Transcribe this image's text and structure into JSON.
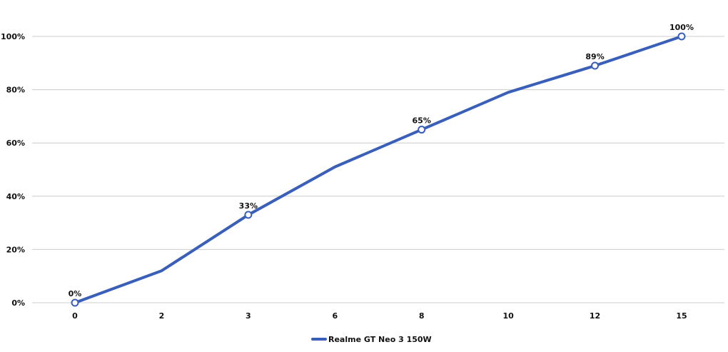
{
  "chart_data": {
    "type": "line",
    "title": "",
    "xlabel": "",
    "ylabel": "",
    "categories": [
      "0",
      "2",
      "3",
      "6",
      "8",
      "10",
      "12",
      "15"
    ],
    "series": [
      {
        "name": "Realme GT Neo 3 150W",
        "values": [
          0,
          12,
          33,
          51,
          65,
          79,
          89,
          100
        ],
        "color": "#3a5fb8"
      }
    ],
    "data_labels": [
      {
        "index": 0,
        "text": "0%"
      },
      {
        "index": 2,
        "text": "33%"
      },
      {
        "index": 4,
        "text": "65%"
      },
      {
        "index": 6,
        "text": "89%"
      },
      {
        "index": 7,
        "text": "100%"
      }
    ],
    "ylim": [
      0,
      100
    ],
    "yticks": [
      {
        "value": 0,
        "label": "0%"
      },
      {
        "value": 20,
        "label": "20%"
      },
      {
        "value": 40,
        "label": "40%"
      },
      {
        "value": 60,
        "label": "60%"
      },
      {
        "value": 80,
        "label": "80%"
      },
      {
        "value": 100,
        "label": "100%"
      }
    ],
    "grid": true,
    "gridline_color": "#cccccc",
    "legend_position": "bottom-center"
  }
}
